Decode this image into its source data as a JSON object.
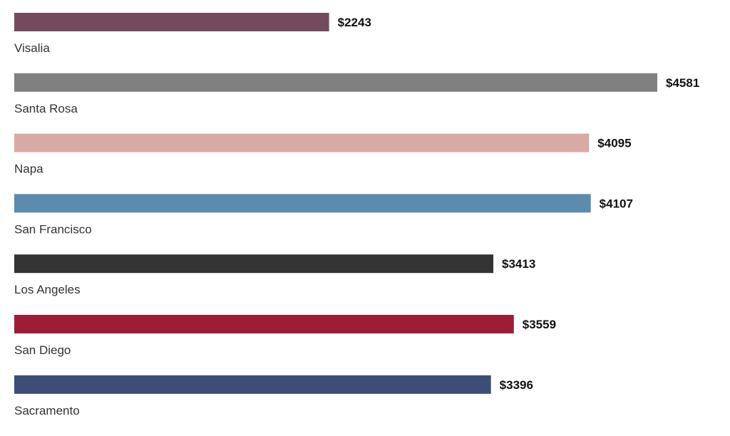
{
  "chart_data": {
    "type": "bar",
    "orientation": "horizontal",
    "categories": [
      "Visalia",
      "Santa Rosa",
      "Napa",
      "San Francisco",
      "Los Angeles",
      "San Diego",
      "Sacramento"
    ],
    "values": [
      2243,
      4581,
      4095,
      4107,
      3413,
      3559,
      3396
    ],
    "value_labels": [
      "$2243",
      "$4581",
      "$4095",
      "$4107",
      "$3413",
      "$3559",
      "$3396"
    ],
    "colors": [
      "#744b5e",
      "#808080",
      "#d8aaa5",
      "#5b8bad",
      "#333333",
      "#9c1c35",
      "#3c4d77"
    ],
    "title": "",
    "xlabel": "",
    "ylabel": "",
    "xlim": [
      0,
      4581
    ],
    "grid": false,
    "legend": "none"
  }
}
